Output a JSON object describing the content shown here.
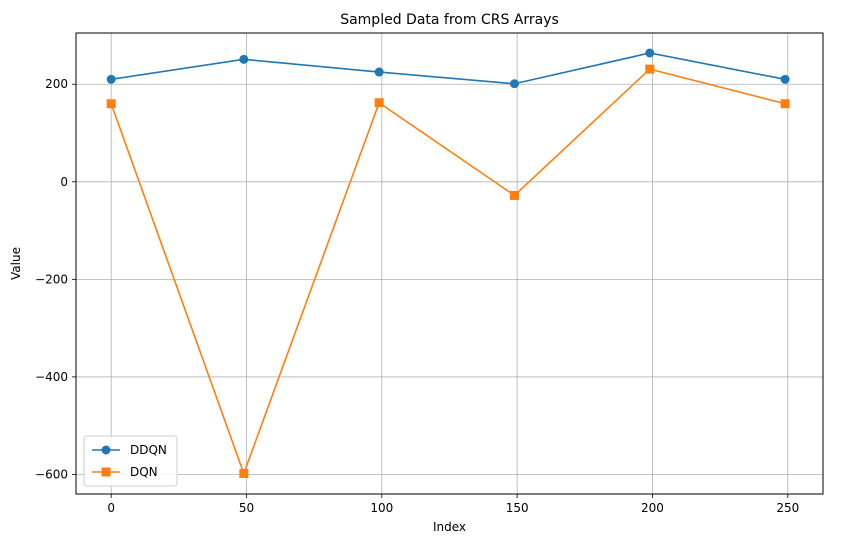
{
  "chart_data": {
    "type": "line",
    "title": "Sampled Data from CRS Arrays",
    "xlabel": "Index",
    "ylabel": "Value",
    "xlim": [
      -13,
      263
    ],
    "ylim": [
      -640,
      305
    ],
    "x_ticks": [
      0,
      50,
      100,
      150,
      200,
      250
    ],
    "y_ticks": [
      -600,
      -400,
      -200,
      0,
      200
    ],
    "x_tick_labels": [
      "0",
      "50",
      "100",
      "150",
      "200",
      "250"
    ],
    "y_tick_labels": [
      "−600",
      "−400",
      "−200",
      "0",
      "200"
    ],
    "grid": true,
    "legend_position": "lower-left",
    "series": [
      {
        "name": "DDQN",
        "color": "#1f77b4",
        "marker": "circle",
        "x": [
          0,
          49,
          99,
          149,
          199,
          249
        ],
        "values": [
          210,
          251,
          225,
          201,
          264,
          210
        ]
      },
      {
        "name": "DQN",
        "color": "#ff7f0e",
        "marker": "square",
        "x": [
          0,
          49,
          99,
          149,
          199,
          249
        ],
        "values": [
          160,
          -598,
          162,
          -28,
          231,
          160
        ]
      }
    ]
  }
}
